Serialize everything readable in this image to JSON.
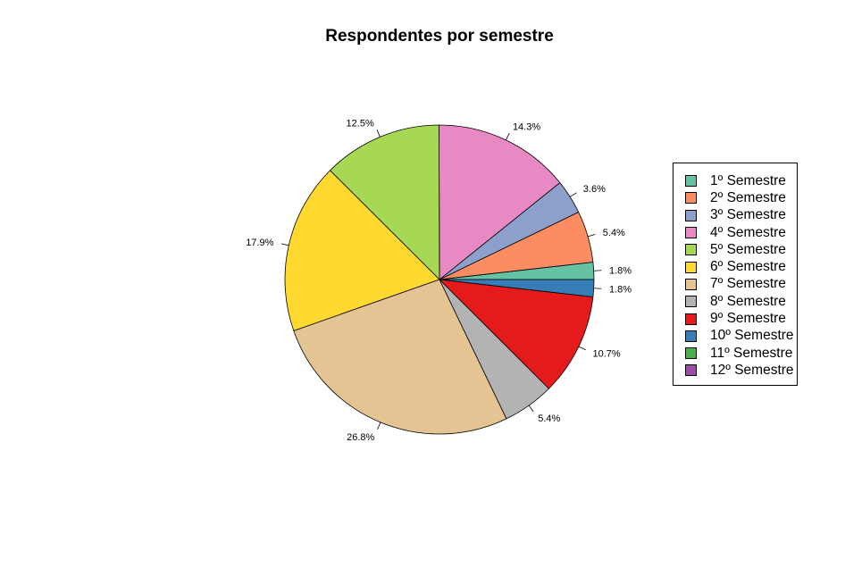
{
  "chart_data": {
    "type": "pie",
    "title": "Respondentes por semestre",
    "legend_position": "right",
    "slices": [
      {
        "label": "1º Semestre",
        "value": 1.8,
        "display": "1.8%",
        "color": "#66c2a5"
      },
      {
        "label": "2º Semestre",
        "value": 5.4,
        "display": "5.4%",
        "color": "#fc8d62"
      },
      {
        "label": "3º Semestre",
        "value": 3.6,
        "display": "3.6%",
        "color": "#8da0cb"
      },
      {
        "label": "4º Semestre",
        "value": 14.3,
        "display": "14.3%",
        "color": "#e78ac3"
      },
      {
        "label": "5º Semestre",
        "value": 12.5,
        "display": "12.5%",
        "color": "#a6d854"
      },
      {
        "label": "6º Semestre",
        "value": 17.9,
        "display": "17.9%",
        "color": "#ffd92f"
      },
      {
        "label": "7º Semestre",
        "value": 26.8,
        "display": "26.8%",
        "color": "#e5c494"
      },
      {
        "label": "8º Semestre",
        "value": 5.4,
        "display": "5.4%",
        "color": "#b3b3b3"
      },
      {
        "label": "9º Semestre",
        "value": 10.7,
        "display": "10.7%",
        "color": "#e41a1c"
      },
      {
        "label": "10º Semestre",
        "value": 1.8,
        "display": "1.8%",
        "color": "#377eb8"
      },
      {
        "label": "11º Semestre",
        "value": 0,
        "display": "",
        "color": "#4daf4a"
      },
      {
        "label": "12º Semestre",
        "value": 0,
        "display": "",
        "color": "#984ea3"
      }
    ]
  }
}
